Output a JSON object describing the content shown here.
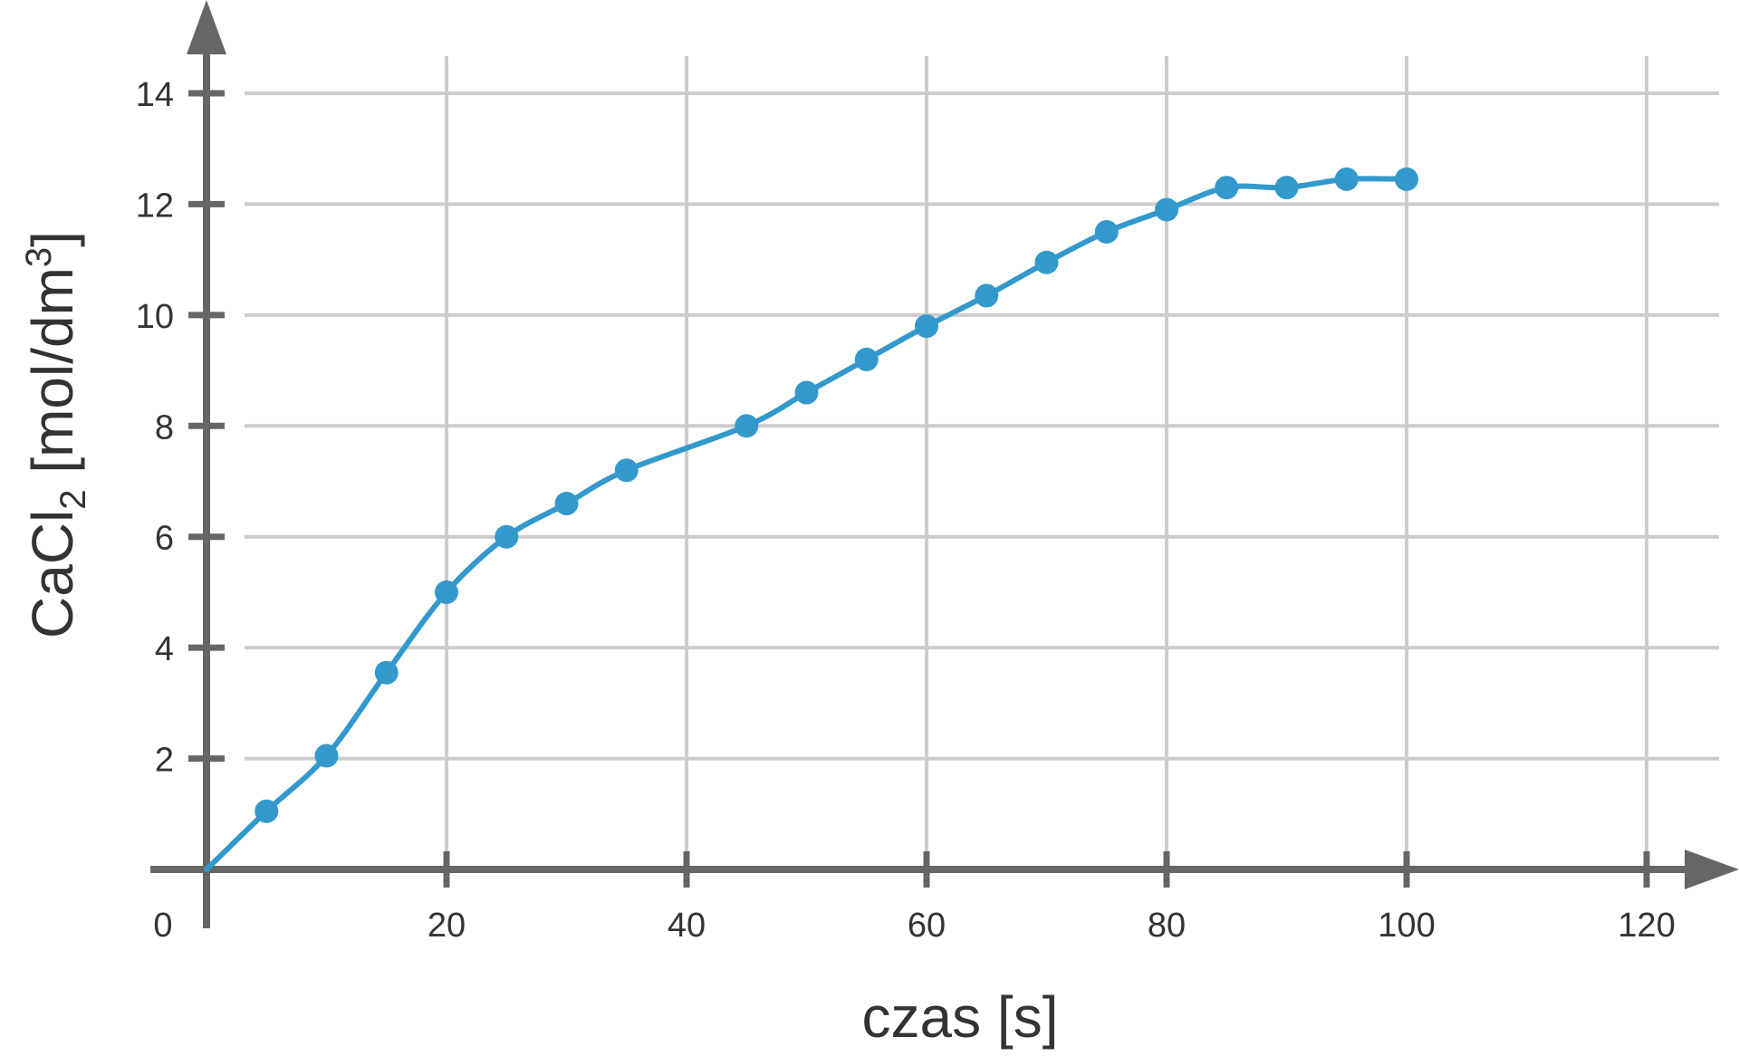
{
  "chart_data": {
    "type": "line",
    "xlabel": "czas [s]",
    "ylabel": {
      "prefix": "CaCl",
      "subscript": "2",
      "unit_open": " [mol/dm",
      "superscript": "3",
      "unit_close": "]"
    },
    "xlim": [
      0,
      120
    ],
    "ylim": [
      0,
      14
    ],
    "x_ticks": [
      "0",
      "20",
      "40",
      "60",
      "80",
      "100",
      "120"
    ],
    "y_ticks": [
      "2",
      "4",
      "6",
      "8",
      "10",
      "12",
      "14"
    ],
    "grid": true,
    "series": [
      {
        "x": [
          5,
          10,
          15,
          20,
          25,
          30,
          35,
          45,
          50,
          55,
          60,
          65,
          70,
          75,
          80,
          85,
          90,
          95,
          100
        ],
        "y": [
          1.05,
          2.05,
          3.55,
          5.0,
          6.0,
          6.6,
          7.2,
          8.0,
          8.6,
          9.2,
          9.8,
          10.35,
          10.95,
          11.5,
          11.9,
          12.3,
          12.3,
          12.45,
          12.45
        ]
      }
    ],
    "colors": {
      "series": "#3399cc",
      "axis": "#666666",
      "grid": "#cccccc",
      "text": "#333333"
    }
  }
}
